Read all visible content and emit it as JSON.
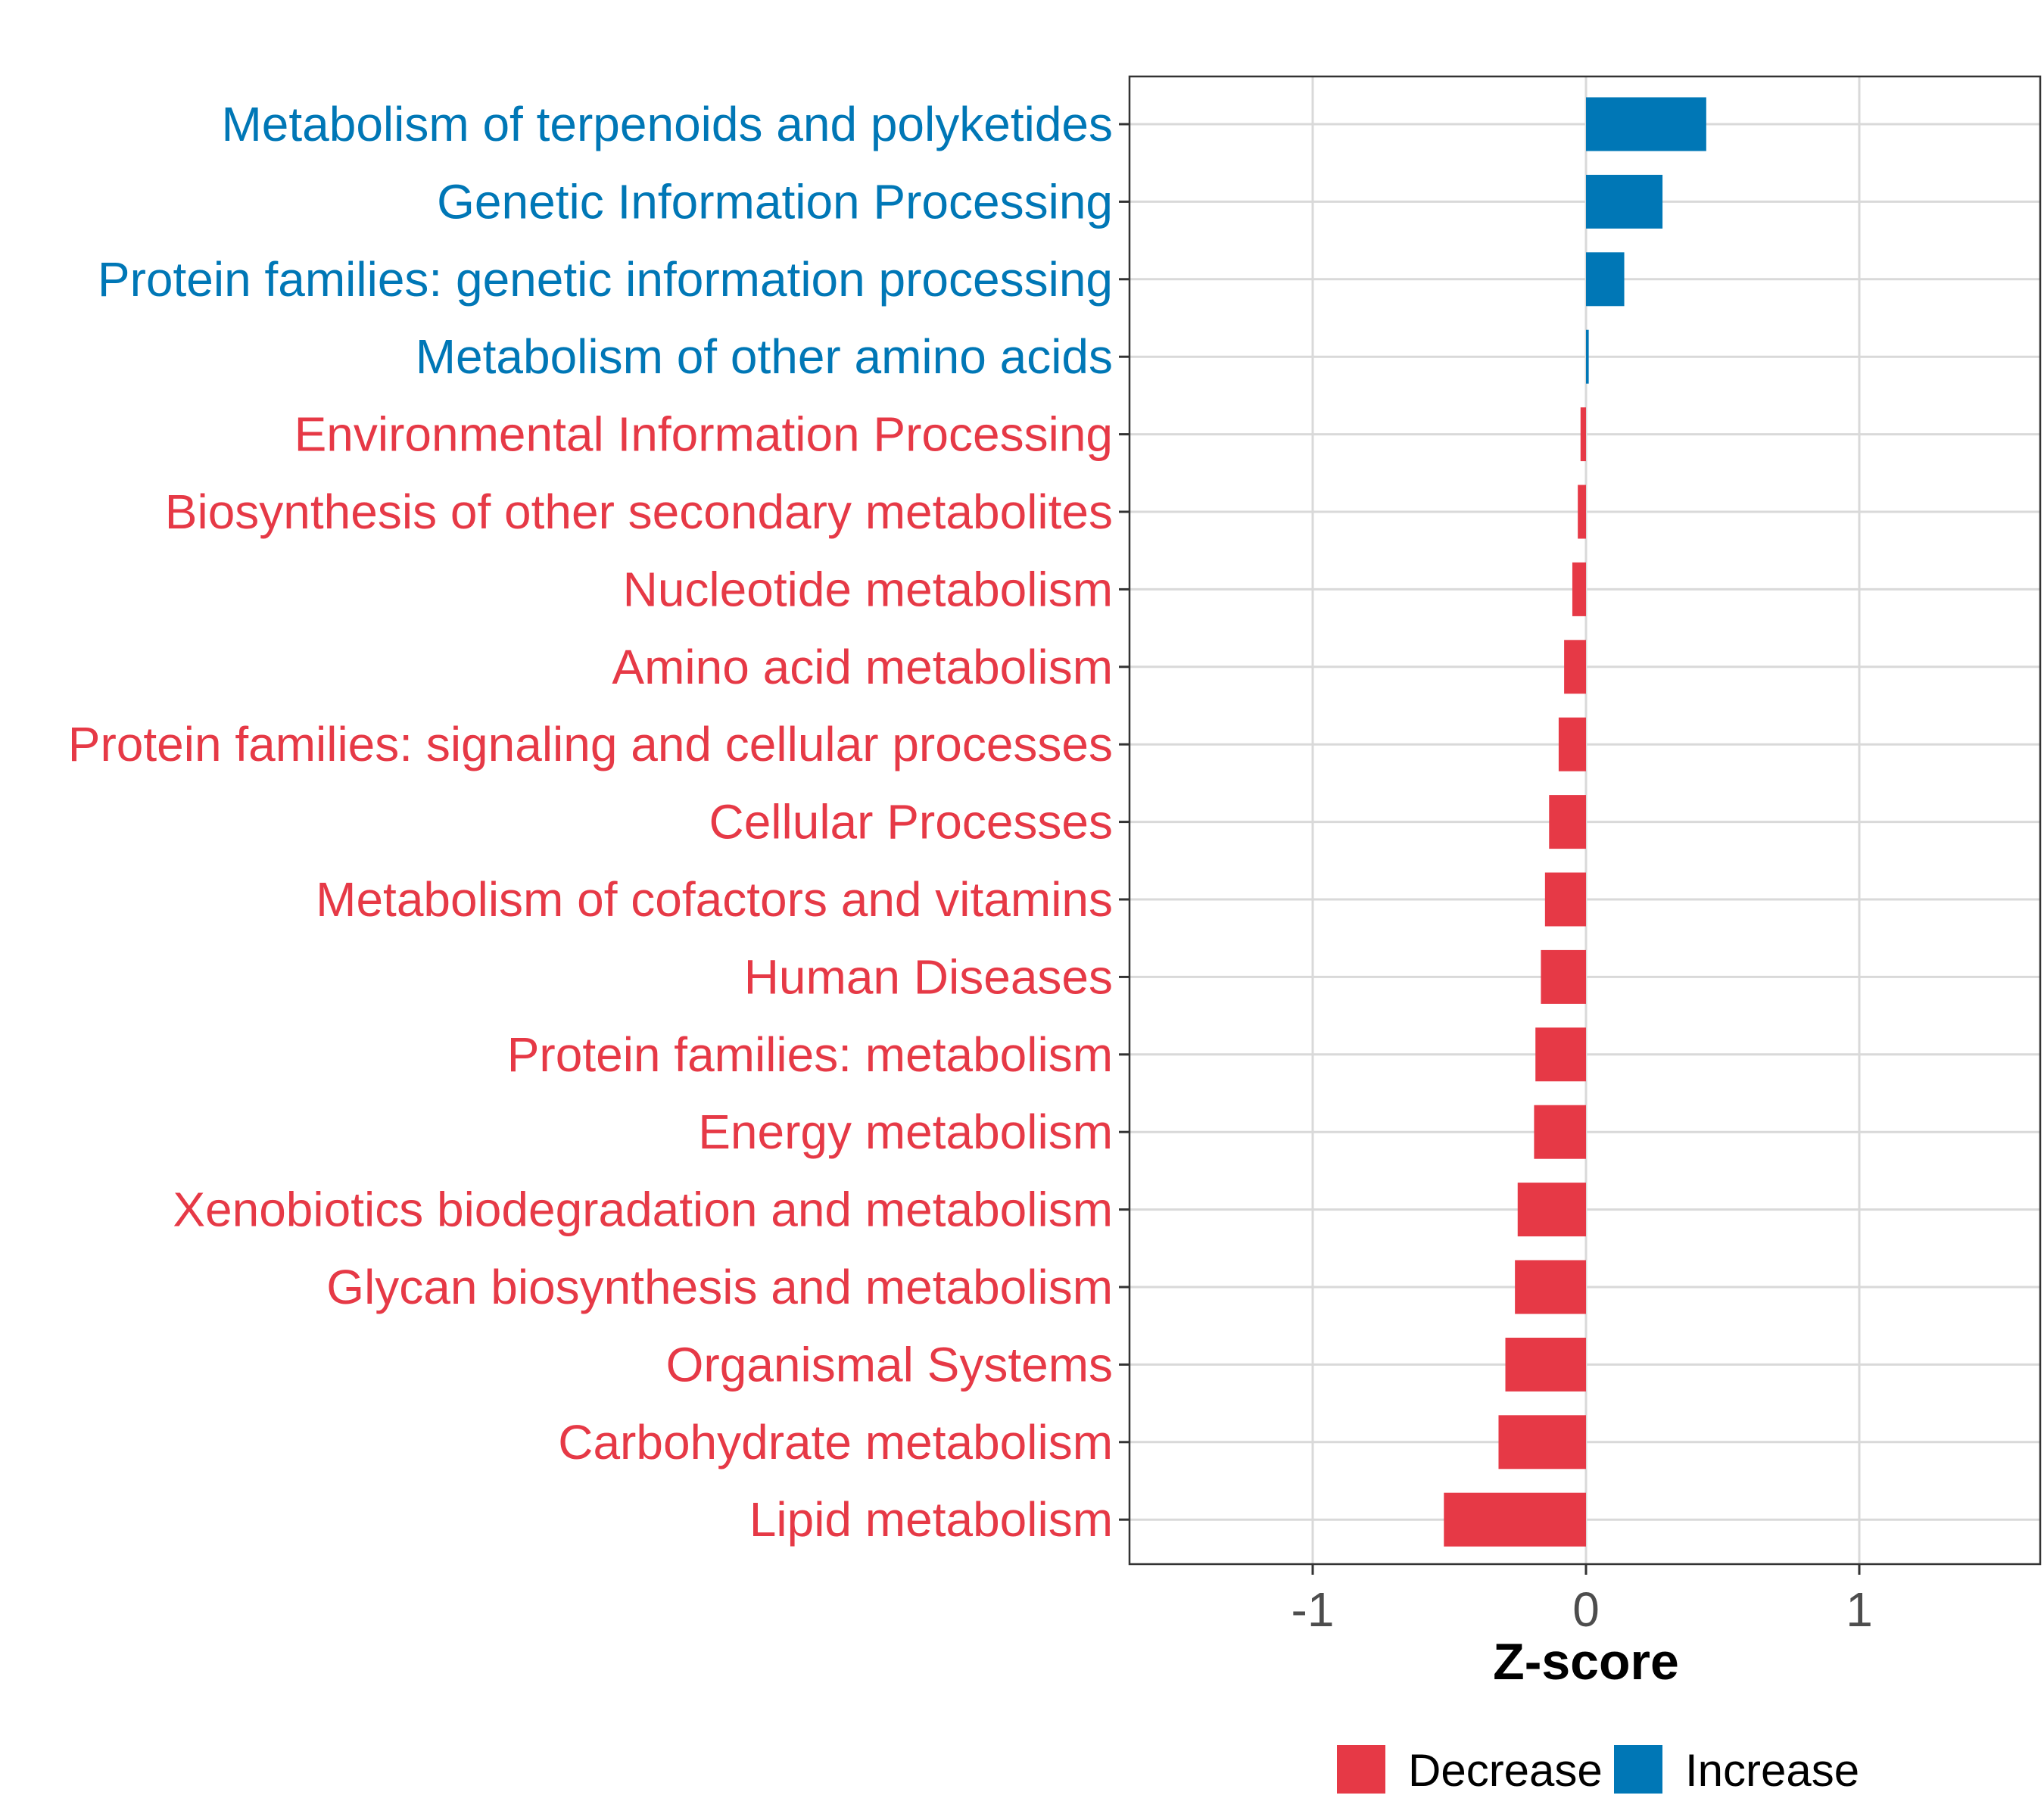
{
  "chart_data": {
    "type": "bar",
    "orientation": "horizontal",
    "title": "",
    "xlabel": "Z-score",
    "ylabel": "",
    "xlim": [
      -1.65,
      1.65
    ],
    "xticks": [
      -1,
      0,
      1
    ],
    "xtick_labels": [
      "-1",
      "0",
      "1"
    ],
    "grid": true,
    "categories": [
      "Metabolism of terpenoids and polyketides",
      "Genetic Information Processing",
      "Protein families: genetic information processing",
      "Metabolism of other amino acids",
      "Environmental Information Processing",
      "Biosynthesis of other secondary metabolites",
      "Nucleotide metabolism",
      "Amino acid metabolism",
      "Protein families: signaling and cellular processes",
      "Cellular Processes",
      "Metabolism of cofactors and vitamins",
      "Human Diseases",
      "Protein families: metabolism",
      "Energy metabolism",
      "Xenobiotics biodegradation and metabolism",
      "Glycan biosynthesis and metabolism",
      "Organismal Systems",
      "Carbohydrate metabolism",
      "Lipid metabolism"
    ],
    "values": [
      0.44,
      0.28,
      0.14,
      0.01,
      -0.02,
      -0.03,
      -0.05,
      -0.08,
      -0.1,
      -0.135,
      -0.15,
      -0.165,
      -0.185,
      -0.19,
      -0.25,
      -0.26,
      -0.295,
      -0.32,
      -0.52
    ],
    "groups": [
      "Increase",
      "Increase",
      "Increase",
      "Increase",
      "Decrease",
      "Decrease",
      "Decrease",
      "Decrease",
      "Decrease",
      "Decrease",
      "Decrease",
      "Decrease",
      "Decrease",
      "Decrease",
      "Decrease",
      "Decrease",
      "Decrease",
      "Decrease",
      "Decrease"
    ],
    "legend": {
      "position": "bottom",
      "entries": [
        {
          "label": "Decrease",
          "color": "#E63946"
        },
        {
          "label": "Increase",
          "color": "#0077B6"
        }
      ]
    }
  }
}
